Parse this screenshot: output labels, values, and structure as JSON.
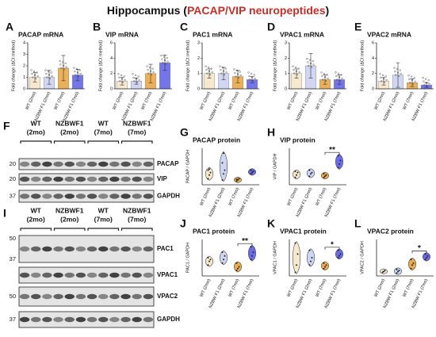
{
  "title_parts": [
    "Hippocampus (",
    "PACAP/VIP neuropeptides",
    ")"
  ],
  "chart_data": [
    {
      "type": "bar",
      "panel": "A",
      "title": "PACAP mRNA",
      "ylabel": "Fold change (ΔCt method)",
      "ylim": [
        0,
        4
      ],
      "yticks": [
        0,
        1,
        2,
        3,
        4
      ],
      "categories": [
        "WT (2mo)",
        "NZBW F1 (2mo)",
        "WT (7mo)",
        "NZBW F1 (7mo)"
      ],
      "colors": [
        "#f5e6c8",
        "#c9d1f2",
        "#e9a43c",
        "#5b5de6"
      ],
      "values": [
        1.0,
        1.0,
        1.8,
        1.2
      ],
      "errors": [
        0.4,
        0.6,
        1.1,
        0.5
      ]
    },
    {
      "type": "bar",
      "panel": "B",
      "title": "VIP mRNA",
      "ylabel": "Fold change (ΔCt method)",
      "ylim": [
        0,
        6
      ],
      "yticks": [
        0,
        2,
        4,
        6
      ],
      "categories": [
        "WT (2mo)",
        "NZBW F1 (2mo)",
        "WT (7mo)",
        "NZBW F1 (7mo)"
      ],
      "colors": [
        "#f5e6c8",
        "#c9d1f2",
        "#e9a43c",
        "#5b5de6"
      ],
      "values": [
        1.0,
        1.0,
        2.0,
        3.4
      ],
      "errors": [
        0.5,
        0.4,
        1.2,
        1.0
      ]
    },
    {
      "type": "bar",
      "panel": "C",
      "title": "PAC1 mRNA",
      "ylabel": "Fold change (ΔCt method)",
      "ylim": [
        0,
        3
      ],
      "yticks": [
        0,
        1,
        2,
        3
      ],
      "categories": [
        "WT (2mo)",
        "NZBW F1 (2mo)",
        "WT (7mo)",
        "NZBW F1 (7mo)"
      ],
      "colors": [
        "#f5e6c8",
        "#c9d1f2",
        "#e9a43c",
        "#5b5de6"
      ],
      "values": [
        1.0,
        1.0,
        0.8,
        0.6
      ],
      "errors": [
        0.3,
        0.4,
        0.4,
        0.2
      ]
    },
    {
      "type": "bar",
      "panel": "D",
      "title": "VPAC1 mRNA",
      "ylabel": "Fold change (ΔCt method)",
      "ylim": [
        0,
        3
      ],
      "yticks": [
        0,
        1,
        2,
        3
      ],
      "categories": [
        "WT (2mo)",
        "NZBW F1 (2mo)",
        "WT (7mo)",
        "NZBW F1 (7mo)"
      ],
      "colors": [
        "#f5e6c8",
        "#c9d1f2",
        "#e9a43c",
        "#5b5de6"
      ],
      "values": [
        1.0,
        1.5,
        0.6,
        0.6
      ],
      "errors": [
        0.3,
        0.8,
        0.3,
        0.3
      ]
    },
    {
      "type": "bar",
      "panel": "E",
      "title": "VPAC2 mRNA",
      "ylabel": "Fold change (ΔCt method)",
      "ylim": [
        0,
        6
      ],
      "yticks": [
        0,
        2,
        4,
        6
      ],
      "categories": [
        "WT (2mo)",
        "NZBW F1 (2mo)",
        "WT (7mo)",
        "NZBW F1 (7mo)"
      ],
      "colors": [
        "#f5e6c8",
        "#c9d1f2",
        "#e9a43c",
        "#5b5de6"
      ],
      "values": [
        1.0,
        1.8,
        0.8,
        0.5
      ],
      "errors": [
        0.5,
        1.6,
        0.5,
        0.3
      ]
    },
    {
      "type": "violin",
      "panel": "G",
      "title": "PACAP protein",
      "ylabel": "PACAP / GAPDH",
      "ylim": [
        0,
        3
      ],
      "categories": [
        "WT (2mo)",
        "NZBW F1 (2mo)",
        "WT (7mo)",
        "NZBW F1 (7mo)"
      ],
      "colors": [
        "#f5e6c8",
        "#c9d1f2",
        "#e9a43c",
        "#5b5de6"
      ],
      "groups": [
        [
          0.5,
          0.8,
          1.0,
          1.2,
          1.3
        ],
        [
          0.4,
          0.9,
          1.2,
          1.8,
          2.6
        ],
        [
          0.3,
          0.4,
          0.5,
          0.45
        ],
        [
          0.9,
          1.0,
          1.1,
          1.2
        ]
      ]
    },
    {
      "type": "violin",
      "panel": "H",
      "title": "VIP protein",
      "ylabel": "VIP / GAPDH",
      "ylim": [
        0,
        1.5
      ],
      "categories": [
        "WT (2mo)",
        "NZBW F1 (2mo)",
        "WT (7mo)",
        "NZBW F1 (7mo)"
      ],
      "colors": [
        "#f5e6c8",
        "#c9d1f2",
        "#e9a43c",
        "#5b5de6"
      ],
      "groups": [
        [
          0.3,
          0.4,
          0.5,
          0.55
        ],
        [
          0.35,
          0.45,
          0.5,
          0.6
        ],
        [
          0.3,
          0.35,
          0.4,
          0.45
        ],
        [
          0.7,
          0.85,
          1.0,
          1.2
        ]
      ],
      "significance": "**"
    },
    {
      "type": "violin",
      "panel": "J",
      "title": "PAC1 protein",
      "ylabel": "PAC1 / GAPDH",
      "ylim": [
        0,
        2
      ],
      "categories": [
        "WT (2mo)",
        "NZBW F1 (2mo)",
        "WT (7mo)",
        "NZBW F1 (7mo)"
      ],
      "colors": [
        "#f5e6c8",
        "#c9d1f2",
        "#e9a43c",
        "#5b5de6"
      ],
      "groups": [
        [
          0.6,
          0.8,
          0.9,
          1.0
        ],
        [
          0.7,
          0.9,
          1.1,
          1.3
        ],
        [
          0.3,
          0.4,
          0.5,
          0.7
        ],
        [
          0.9,
          1.1,
          1.3,
          1.6
        ]
      ],
      "significance": "**"
    },
    {
      "type": "violin",
      "panel": "K",
      "title": "VPAC1 protein",
      "ylabel": "VPAC1 / GAPDH",
      "ylim": [
        0,
        1
      ],
      "categories": [
        "WT (2mo)",
        "NZBW F1 (2mo)",
        "WT (7mo)",
        "NZBW F1 (7mo)"
      ],
      "colors": [
        "#f5e6c8",
        "#c9d1f2",
        "#e9a43c",
        "#5b5de6"
      ],
      "groups": [
        [
          0.1,
          0.3,
          0.6,
          0.9
        ],
        [
          0.3,
          0.4,
          0.5,
          0.7
        ],
        [
          0.2,
          0.25,
          0.3,
          0.35
        ],
        [
          0.5,
          0.55,
          0.6,
          0.7
        ]
      ],
      "significance": "*"
    },
    {
      "type": "violin",
      "panel": "L",
      "title": "VPAC2 protein",
      "ylabel": "VPAC2 / GAPDH",
      "ylim": [
        0,
        1
      ],
      "categories": [
        "WT (2mo)",
        "NZBW F1 (2mo)",
        "WT (7mo)",
        "NZBW F1 (7mo)"
      ],
      "colors": [
        "#f5e6c8",
        "#c9d1f2",
        "#e9a43c",
        "#5b5de6"
      ],
      "groups": [
        [
          0.1,
          0.12,
          0.15
        ],
        [
          0.08,
          0.12,
          0.15,
          0.18
        ],
        [
          0.2,
          0.3,
          0.35,
          0.45
        ],
        [
          0.45,
          0.5,
          0.55,
          0.6
        ]
      ],
      "significance": "*"
    }
  ],
  "blots": [
    {
      "panel": "F",
      "groups": [
        [
          "WT",
          "(2mo)"
        ],
        [
          "NZBWF1",
          "(2mo)"
        ],
        [
          "WT",
          "(7mo)"
        ],
        [
          "NZBWF1",
          "(7mo)"
        ]
      ],
      "rows": [
        {
          "markers": [
            "20"
          ],
          "label": "PACAP"
        },
        {
          "markers": [
            "20"
          ],
          "label": "VIP"
        },
        {
          "markers": [
            "37"
          ],
          "label": "GAPDH"
        }
      ]
    },
    {
      "panel": "I",
      "groups": [
        [
          "WT",
          "(2mo)"
        ],
        [
          "NZBWF1",
          "(2mo)"
        ],
        [
          "WT",
          "(7mo)"
        ],
        [
          "NZBWF1",
          "(7mo)"
        ]
      ],
      "rows": [
        {
          "markers": [
            "50",
            "37"
          ],
          "label": "PAC1"
        },
        {
          "markers": [],
          "label": "VPAC1"
        },
        {
          "markers": [
            "50"
          ],
          "label": "VPAC2"
        },
        {
          "markers": [
            "37"
          ],
          "label": "GAPDH"
        }
      ]
    }
  ]
}
